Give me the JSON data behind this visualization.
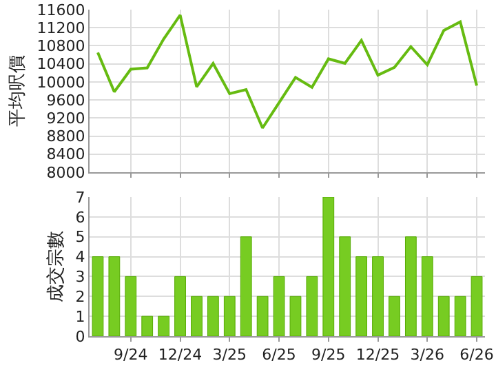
{
  "chart_data": [
    {
      "type": "line",
      "ylabel": "平均呎價",
      "categories": [
        null,
        null,
        null,
        null,
        null,
        null,
        null,
        null,
        null,
        null,
        null,
        null,
        null,
        null,
        null,
        null,
        null,
        null,
        null,
        null,
        null,
        null,
        null,
        null
      ],
      "series": [
        {
          "color": "#66bb11",
          "values": [
            10650,
            9780,
            10280,
            10310,
            10950,
            11480,
            9890,
            10410,
            9740,
            9830,
            8980,
            9540,
            10100,
            9880,
            10510,
            10410,
            10920,
            10150,
            10320,
            10780,
            10380,
            11140,
            11330,
            9920
          ]
        }
      ],
      "ylim": [
        8000,
        11600
      ],
      "yticks": [
        8000,
        8400,
        8800,
        9200,
        9600,
        10000,
        10400,
        10800,
        11200,
        11600
      ],
      "grid": true,
      "tick_labels": "y",
      "marker": "none"
    },
    {
      "type": "bar",
      "ylabel": "成交宗數",
      "categories": [
        null,
        null,
        "9/24",
        null,
        null,
        "12/24",
        null,
        null,
        "3/25",
        null,
        null,
        "6/25",
        null,
        null,
        "9/25",
        null,
        null,
        "12/25",
        null,
        null,
        "3/26",
        null,
        null,
        "6/26"
      ],
      "series": [
        {
          "color": "#77cc22",
          "values": [
            4,
            4,
            3,
            1,
            1,
            3,
            2,
            2,
            2,
            5,
            2,
            3,
            2,
            3,
            7,
            5,
            4,
            4,
            2,
            5,
            4,
            2,
            2,
            3
          ]
        }
      ],
      "ylim": [
        0,
        7
      ],
      "yticks": [
        0,
        1,
        2,
        3,
        4,
        5,
        6,
        7
      ],
      "grid": true
    }
  ]
}
